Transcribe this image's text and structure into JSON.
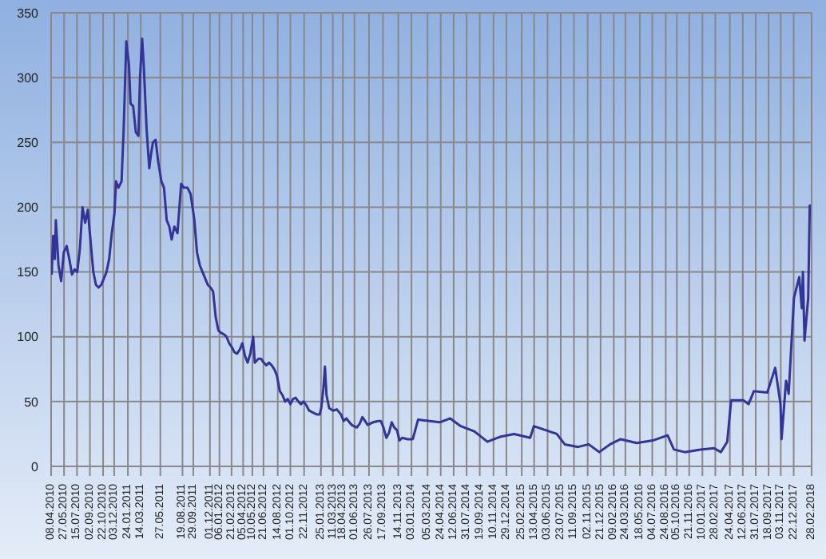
{
  "chart_data": {
    "type": "line",
    "x": [
      "2010-04-10",
      "2010-04-16",
      "2010-04-22",
      "2010-04-26",
      "2010-05-06",
      "2010-05-16",
      "2010-05-26",
      "2010-06-06",
      "2010-06-16",
      "2010-06-26",
      "2010-07-06",
      "2010-07-16",
      "2010-07-26",
      "2010-08-05",
      "2010-08-15",
      "2010-08-25",
      "2010-09-04",
      "2010-09-15",
      "2010-09-25",
      "2010-10-05",
      "2010-10-15",
      "2010-11-04",
      "2010-11-14",
      "2010-11-24",
      "2010-12-04",
      "2010-12-10",
      "2010-12-19",
      "2010-12-31",
      "2011-01-08",
      "2011-01-18",
      "2011-01-28",
      "2011-02-03",
      "2011-02-13",
      "2011-02-23",
      "2011-03-05",
      "2011-03-11",
      "2011-03-19",
      "2011-03-25",
      "2011-04-05",
      "2011-04-15",
      "2011-04-21",
      "2011-04-29",
      "2011-05-09",
      "2011-05-19",
      "2011-05-31",
      "2011-06-10",
      "2011-06-20",
      "2011-06-30",
      "2011-07-09",
      "2011-07-19",
      "2011-07-31",
      "2011-08-14",
      "2011-08-24",
      "2011-09-07",
      "2011-09-19",
      "2011-10-03",
      "2011-10-13",
      "2011-10-24",
      "2011-11-03",
      "2011-11-13",
      "2011-11-23",
      "2011-12-03",
      "2011-12-13",
      "2011-12-23",
      "2012-01-02",
      "2012-01-12",
      "2012-01-22",
      "2012-02-02",
      "2012-02-12",
      "2012-02-22",
      "2012-03-03",
      "2012-03-13",
      "2012-03-23",
      "2012-04-02",
      "2012-04-12",
      "2012-04-22",
      "2012-05-02",
      "2012-05-13",
      "2012-05-19",
      "2012-06-02",
      "2012-06-12",
      "2012-06-22",
      "2012-07-02",
      "2012-07-12",
      "2012-07-22",
      "2012-08-01",
      "2012-08-11",
      "2012-08-22",
      "2012-09-01",
      "2012-09-11",
      "2012-09-21",
      "2012-10-01",
      "2012-10-11",
      "2012-10-21",
      "2012-10-31",
      "2012-11-10",
      "2012-11-20",
      "2012-12-01",
      "2012-12-11",
      "2012-12-21",
      "2013-01-10",
      "2013-01-20",
      "2013-01-26",
      "2013-02-03",
      "2013-02-09",
      "2013-02-15",
      "2013-02-25",
      "2013-03-12",
      "2013-03-26",
      "2013-04-11",
      "2013-04-21",
      "2013-05-01",
      "2013-05-21",
      "2013-06-10",
      "2013-06-21",
      "2013-07-01",
      "2013-07-11",
      "2013-07-21",
      "2013-08-10",
      "2013-08-30",
      "2013-09-09",
      "2013-09-19",
      "2013-09-30",
      "2013-10-10",
      "2013-10-20",
      "2013-10-30",
      "2013-11-09",
      "2013-11-19",
      "2013-11-29",
      "2013-12-19",
      "2014-01-08",
      "2014-01-28",
      "2014-04-20",
      "2014-05-30",
      "2014-07-09",
      "2014-08-29",
      "2014-10-18",
      "2014-12-08",
      "2015-01-27",
      "2015-03-29",
      "2015-04-12",
      "2015-07-08",
      "2015-08-07",
      "2015-09-27",
      "2015-11-06",
      "2015-12-16",
      "2016-01-26",
      "2016-03-06",
      "2016-05-06",
      "2016-07-06",
      "2016-08-31",
      "2016-09-24",
      "2016-11-04",
      "2017-01-03",
      "2017-02-23",
      "2017-03-21",
      "2017-04-14",
      "2017-04-29",
      "2017-06-14",
      "2017-07-04",
      "2017-07-24",
      "2017-09-13",
      "2017-10-13",
      "2017-11-02",
      "2017-11-06",
      "2017-11-23",
      "2017-12-03",
      "2017-12-23",
      "2018-01-12",
      "2018-01-22",
      "2018-01-26",
      "2018-02-01",
      "2018-02-15",
      "2018-02-21"
    ],
    "series": [
      {
        "color": "#333399",
        "values": [
          148,
          178,
          160,
          190,
          155,
          143,
          165,
          170,
          160,
          148,
          152,
          150,
          168,
          200,
          188,
          198,
          175,
          150,
          140,
          138,
          140,
          150,
          160,
          180,
          195,
          220,
          215,
          220,
          260,
          328,
          310,
          280,
          278,
          258,
          255,
          300,
          330,
          310,
          260,
          230,
          240,
          250,
          252,
          235,
          220,
          215,
          190,
          185,
          175,
          185,
          180,
          218,
          215,
          215,
          210,
          190,
          165,
          155,
          150,
          145,
          140,
          138,
          135,
          115,
          105,
          103,
          102,
          100,
          95,
          92,
          88,
          87,
          90,
          95,
          85,
          80,
          87,
          100,
          80,
          83,
          83,
          80,
          78,
          80,
          78,
          75,
          70,
          58,
          55,
          50,
          52,
          48,
          52,
          53,
          50,
          48,
          50,
          47,
          43,
          42,
          40,
          40,
          45,
          60,
          77,
          55,
          45,
          43,
          44,
          40,
          35,
          37,
          32,
          30,
          33,
          38,
          35,
          32,
          34,
          35,
          35,
          30,
          22,
          26,
          34,
          30,
          28,
          20,
          22,
          21,
          21,
          36,
          34,
          37,
          31,
          27,
          19,
          23,
          25,
          22,
          31,
          25,
          17,
          15,
          17,
          11,
          17,
          21,
          18,
          20,
          24,
          13,
          11,
          13,
          14,
          11,
          19,
          51,
          51,
          48,
          58,
          57,
          76,
          48,
          21,
          66,
          56,
          130,
          146,
          122,
          150,
          97,
          130,
          202
        ]
      }
    ],
    "xlim": [
      "2010-04-08",
      "2018-02-28"
    ],
    "xticks": [
      {
        "value": "2010-04-08",
        "label": "08.04.2010"
      },
      {
        "value": "2010-05-27",
        "label": "27.05.2010"
      },
      {
        "value": "2010-07-15",
        "label": "15.07.2010"
      },
      {
        "value": "2010-09-02",
        "label": "02.09.2010"
      },
      {
        "value": "2010-10-22",
        "label": "22.10.2010"
      },
      {
        "value": "2010-12-03",
        "label": "03.12.2010"
      },
      {
        "value": "2011-01-24",
        "label": "24.01.2011"
      },
      {
        "value": "2011-03-14",
        "label": "14.03.2011"
      },
      {
        "value": "2011-05-27",
        "label": "27.05.2011"
      },
      {
        "value": "2011-08-19",
        "label": "19.08.2011"
      },
      {
        "value": "2011-09-29",
        "label": "29.09.2011"
      },
      {
        "value": "2011-12-01",
        "label": "01.12.2011"
      },
      {
        "value": "2012-01-06",
        "label": "06.01.2012"
      },
      {
        "value": "2012-02-21",
        "label": "21.02.2012"
      },
      {
        "value": "2012-04-05",
        "label": "05.04.2012"
      },
      {
        "value": "2012-05-10",
        "label": "10.05.2012"
      },
      {
        "value": "2012-06-21",
        "label": "21.06.2012"
      },
      {
        "value": "2012-08-14",
        "label": "14.08.2012"
      },
      {
        "value": "2012-10-01",
        "label": "01.10.2012"
      },
      {
        "value": "2012-11-22",
        "label": "22.11.2012"
      },
      {
        "value": "2013-01-25",
        "label": "25.01.2013"
      },
      {
        "value": "2013-03-11",
        "label": "11.03.2013"
      },
      {
        "value": "2013-04-18",
        "label": "18.04.2013"
      },
      {
        "value": "2013-06-01",
        "label": "01.06.2013"
      },
      {
        "value": "2013-07-26",
        "label": "26.07.2013"
      },
      {
        "value": "2013-09-17",
        "label": "17.09.2013"
      },
      {
        "value": "2013-11-14",
        "label": "14.11.2013"
      },
      {
        "value": "2014-01-03",
        "label": "03.01.2014"
      },
      {
        "value": "2014-03-05",
        "label": "05.03.2014"
      },
      {
        "value": "2014-04-24",
        "label": "24.04.2014"
      },
      {
        "value": "2014-06-12",
        "label": "12.06.2014"
      },
      {
        "value": "2014-07-31",
        "label": "31.07.2014"
      },
      {
        "value": "2014-09-19",
        "label": "19.09.2014"
      },
      {
        "value": "2014-11-10",
        "label": "10.11.2014"
      },
      {
        "value": "2014-12-29",
        "label": "29.12.2014"
      },
      {
        "value": "2015-02-25",
        "label": "25.02.2015"
      },
      {
        "value": "2015-04-13",
        "label": "13.04.2015"
      },
      {
        "value": "2015-06-03",
        "label": "03.06.2015"
      },
      {
        "value": "2015-07-23",
        "label": "23.07.2015"
      },
      {
        "value": "2015-09-11",
        "label": "11.09.2015"
      },
      {
        "value": "2015-11-02",
        "label": "02.11.2015"
      },
      {
        "value": "2015-12-21",
        "label": "21.12.2015"
      },
      {
        "value": "2016-02-09",
        "label": "09.02.2016"
      },
      {
        "value": "2016-03-24",
        "label": "24.03.2016"
      },
      {
        "value": "2016-05-18",
        "label": "18.05.2016"
      },
      {
        "value": "2016-07-04",
        "label": "04.07.2016"
      },
      {
        "value": "2016-08-24",
        "label": "24.08.2016"
      },
      {
        "value": "2016-10-05",
        "label": "05.10.2016"
      },
      {
        "value": "2016-11-21",
        "label": "21.11.2016"
      },
      {
        "value": "2017-01-10",
        "label": "10.01.2017"
      },
      {
        "value": "2017-02-28",
        "label": "28.02.2017"
      },
      {
        "value": "2017-04-24",
        "label": "24.04.2017"
      },
      {
        "value": "2017-06-12",
        "label": "12.06.2017"
      },
      {
        "value": "2017-07-31",
        "label": "31.07.2017"
      },
      {
        "value": "2017-09-18",
        "label": "18.09.2017"
      },
      {
        "value": "2017-11-03",
        "label": "03.11.2017"
      },
      {
        "value": "2017-12-22",
        "label": "22.12.2017"
      },
      {
        "value": "2018-02-28",
        "label": "28.02.2018"
      }
    ],
    "ylim": [
      0,
      350
    ],
    "yticks": [
      0,
      50,
      100,
      150,
      200,
      250,
      300,
      350
    ],
    "grid": true,
    "legend": false
  }
}
